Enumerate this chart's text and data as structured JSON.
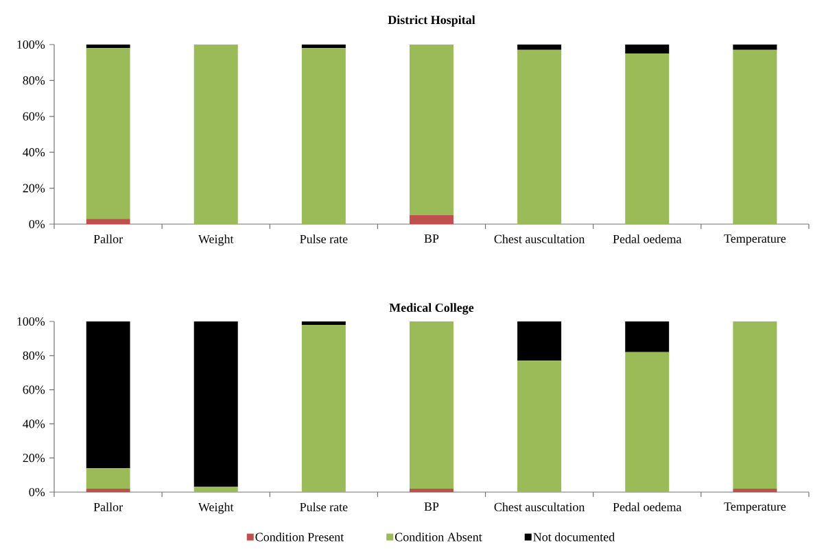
{
  "chart_data": [
    {
      "type": "bar",
      "stacked": true,
      "title": "District Hospital",
      "categories": [
        "Pallor",
        "Weight",
        "Pulse rate",
        "BP",
        "Chest auscultation",
        "Pedal oedema",
        "Temperature"
      ],
      "series": [
        {
          "color": "#c0504d",
          "values": [
            3,
            0,
            0,
            5,
            0,
            0,
            0
          ]
        },
        {
          "color": "#9bbb59",
          "values": [
            95,
            100,
            98,
            95,
            97,
            95,
            97
          ]
        },
        {
          "color": "#000000",
          "values": [
            2,
            0,
            2,
            0,
            3,
            5,
            3
          ]
        }
      ],
      "ylim": [
        0,
        100
      ],
      "yticks": [
        {
          "value": 0,
          "label": "0%"
        },
        {
          "value": 20,
          "label": "20%"
        },
        {
          "value": 40,
          "label": "40%"
        },
        {
          "value": 60,
          "label": "60%"
        },
        {
          "value": 80,
          "label": "80%"
        },
        {
          "value": 100,
          "label": "100%"
        }
      ],
      "grid": false,
      "legend": false
    },
    {
      "type": "bar",
      "stacked": true,
      "title": "Medical College",
      "categories": [
        "Pallor",
        "Weight",
        "Pulse rate",
        "BP",
        "Chest auscultation",
        "Pedal  oedema",
        "Temperature"
      ],
      "series": [
        {
          "name": "Condition Present",
          "color": "#c0504d",
          "values": [
            2,
            0,
            0,
            2,
            0,
            0,
            2
          ]
        },
        {
          "name": "Condition Absent",
          "color": "#9bbb59",
          "values": [
            12,
            3,
            98,
            98,
            77,
            82,
            98
          ]
        },
        {
          "name": "Not documented",
          "color": "#000000",
          "values": [
            86,
            97,
            2,
            0,
            23,
            18,
            0
          ]
        }
      ],
      "ylim": [
        0,
        100
      ],
      "yticks": [
        {
          "value": 0,
          "label": "0%"
        },
        {
          "value": 20,
          "label": "20%"
        },
        {
          "value": 40,
          "label": "40%"
        },
        {
          "value": 60,
          "label": "60%"
        },
        {
          "value": 80,
          "label": "80%"
        },
        {
          "value": 100,
          "label": "100%"
        }
      ],
      "grid": false,
      "legend": "bottom"
    }
  ]
}
